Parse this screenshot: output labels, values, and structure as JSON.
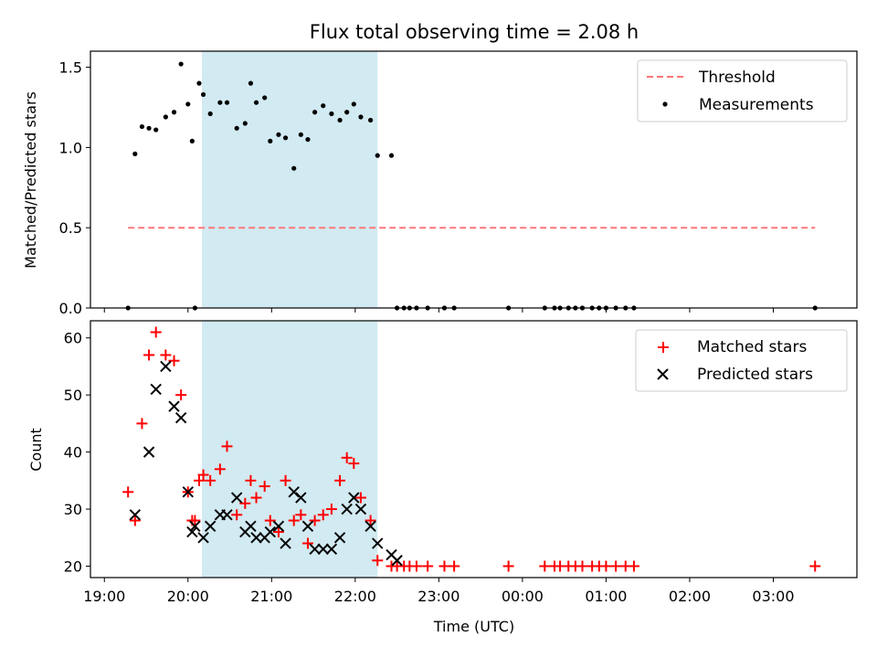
{
  "title": "Flux total observing time = 2.08 h",
  "chart_data": [
    {
      "type": "scatter",
      "ylabel": "Matched/Predicted stars",
      "ylim": [
        0,
        1.6
      ],
      "yticks": [
        0.0,
        0.5,
        1.0,
        1.5
      ],
      "ytick_labels": [
        "0.0",
        "0.5",
        "1.0",
        "1.5"
      ],
      "grid": false,
      "legend_position": "top-right",
      "threshold": {
        "name": "Threshold",
        "value": 0.5,
        "x_range": [
          "19:17",
          "27:30"
        ],
        "color": "#ff7777",
        "style": "dashed"
      },
      "highlight_span": {
        "x_range": [
          "20:10",
          "22:16"
        ],
        "color": "#add8e6"
      },
      "series": [
        {
          "name": "Measurements",
          "color": "#000000",
          "marker": "dot",
          "x": [
            "19:17",
            "19:22",
            "19:27",
            "19:32",
            "19:37",
            "19:44",
            "19:50",
            "19:55",
            "20:00",
            "20:03",
            "20:05",
            "20:08",
            "20:11",
            "20:16",
            "20:23",
            "20:28",
            "20:35",
            "20:41",
            "20:45",
            "20:49",
            "20:55",
            "20:59",
            "21:05",
            "21:10",
            "21:16",
            "21:21",
            "21:26",
            "21:31",
            "21:37",
            "21:43",
            "21:49",
            "21:54",
            "21:59",
            "22:04",
            "22:11",
            "22:16",
            "22:26",
            "22:30",
            "22:35",
            "22:39",
            "22:44",
            "22:52",
            "23:04",
            "23:11",
            "23:50",
            "24:16",
            "24:23",
            "24:27",
            "24:33",
            "24:38",
            "24:43",
            "24:50",
            "24:55",
            "25:00",
            "25:07",
            "25:14",
            "25:20",
            "27:30"
          ],
          "y": [
            0.0,
            0.96,
            1.13,
            1.12,
            1.11,
            1.19,
            1.22,
            1.52,
            1.27,
            1.04,
            0.0,
            1.4,
            1.33,
            1.21,
            1.28,
            1.28,
            1.12,
            1.15,
            1.4,
            1.28,
            1.31,
            1.04,
            1.08,
            1.06,
            0.87,
            1.08,
            1.05,
            1.22,
            1.26,
            1.21,
            1.17,
            1.22,
            1.27,
            1.19,
            1.17,
            0.95,
            0.95,
            0.0,
            0.0,
            0.0,
            0.0,
            0.0,
            0.0,
            0.0,
            0.0,
            0.0,
            0.0,
            0.0,
            0.0,
            0.0,
            0.0,
            0.0,
            0.0,
            0.0,
            0.0,
            0.0,
            0.0,
            0.0
          ]
        }
      ]
    },
    {
      "type": "scatter",
      "xlabel": "Time (UTC)",
      "ylabel": "Count",
      "ylim": [
        18,
        63
      ],
      "yticks": [
        20,
        30,
        40,
        50,
        60
      ],
      "ytick_labels": [
        "20",
        "30",
        "40",
        "50",
        "60"
      ],
      "xlim": [
        "18:50",
        "28:00"
      ],
      "xticks": [
        "19:00",
        "20:00",
        "21:00",
        "22:00",
        "23:00",
        "24:00",
        "25:00",
        "26:00",
        "27:00"
      ],
      "xtick_labels": [
        "19:00",
        "20:00",
        "21:00",
        "22:00",
        "23:00",
        "00:00",
        "01:00",
        "02:00",
        "03:00"
      ],
      "grid": false,
      "legend_position": "top-right",
      "highlight_span": {
        "x_range": [
          "20:10",
          "22:16"
        ],
        "color": "#add8e6"
      },
      "series": [
        {
          "name": "Matched stars",
          "color": "#ff0000",
          "marker": "plus",
          "x": [
            "19:17",
            "19:22",
            "19:27",
            "19:32",
            "19:37",
            "19:44",
            "19:50",
            "19:55",
            "20:00",
            "20:03",
            "20:05",
            "20:08",
            "20:11",
            "20:16",
            "20:23",
            "20:28",
            "20:35",
            "20:41",
            "20:45",
            "20:49",
            "20:55",
            "20:59",
            "21:05",
            "21:10",
            "21:16",
            "21:21",
            "21:26",
            "21:31",
            "21:37",
            "21:43",
            "21:49",
            "21:54",
            "21:59",
            "22:04",
            "22:11",
            "22:16",
            "22:26",
            "22:30",
            "22:35",
            "22:39",
            "22:44",
            "22:52",
            "23:04",
            "23:11",
            "23:50",
            "24:16",
            "24:23",
            "24:27",
            "24:33",
            "24:38",
            "24:43",
            "24:50",
            "24:55",
            "25:00",
            "25:07",
            "25:14",
            "25:20",
            "27:30"
          ],
          "y": [
            33,
            28,
            45,
            57,
            61,
            57,
            56,
            50,
            33,
            28,
            28,
            35,
            36,
            35,
            37,
            41,
            29,
            31,
            35,
            32,
            34,
            28,
            26,
            35,
            28,
            29,
            24,
            28,
            29,
            30,
            35,
            39,
            38,
            32,
            28,
            21,
            20,
            20,
            20,
            20,
            20,
            20,
            20,
            20,
            20,
            20,
            20,
            20,
            20,
            20,
            20,
            20,
            20,
            20,
            20,
            20,
            20,
            20
          ]
        },
        {
          "name": "Predicted stars",
          "color": "#000000",
          "marker": "x",
          "x": [
            "19:22",
            "19:32",
            "19:37",
            "19:44",
            "19:50",
            "19:55",
            "20:00",
            "20:03",
            "20:05",
            "20:11",
            "20:16",
            "20:23",
            "20:28",
            "20:35",
            "20:41",
            "20:45",
            "20:49",
            "20:55",
            "20:59",
            "21:05",
            "21:10",
            "21:16",
            "21:21",
            "21:26",
            "21:31",
            "21:37",
            "21:43",
            "21:49",
            "21:54",
            "21:59",
            "22:04",
            "22:11",
            "22:16",
            "22:26",
            "22:30"
          ],
          "y": [
            29,
            40,
            51,
            55,
            48,
            46,
            33,
            26,
            27,
            25,
            27,
            29,
            29,
            32,
            26,
            27,
            25,
            25,
            26,
            27,
            24,
            33,
            32,
            27,
            23,
            23,
            23,
            25,
            30,
            32,
            30,
            27,
            24,
            22,
            21
          ]
        }
      ]
    }
  ]
}
